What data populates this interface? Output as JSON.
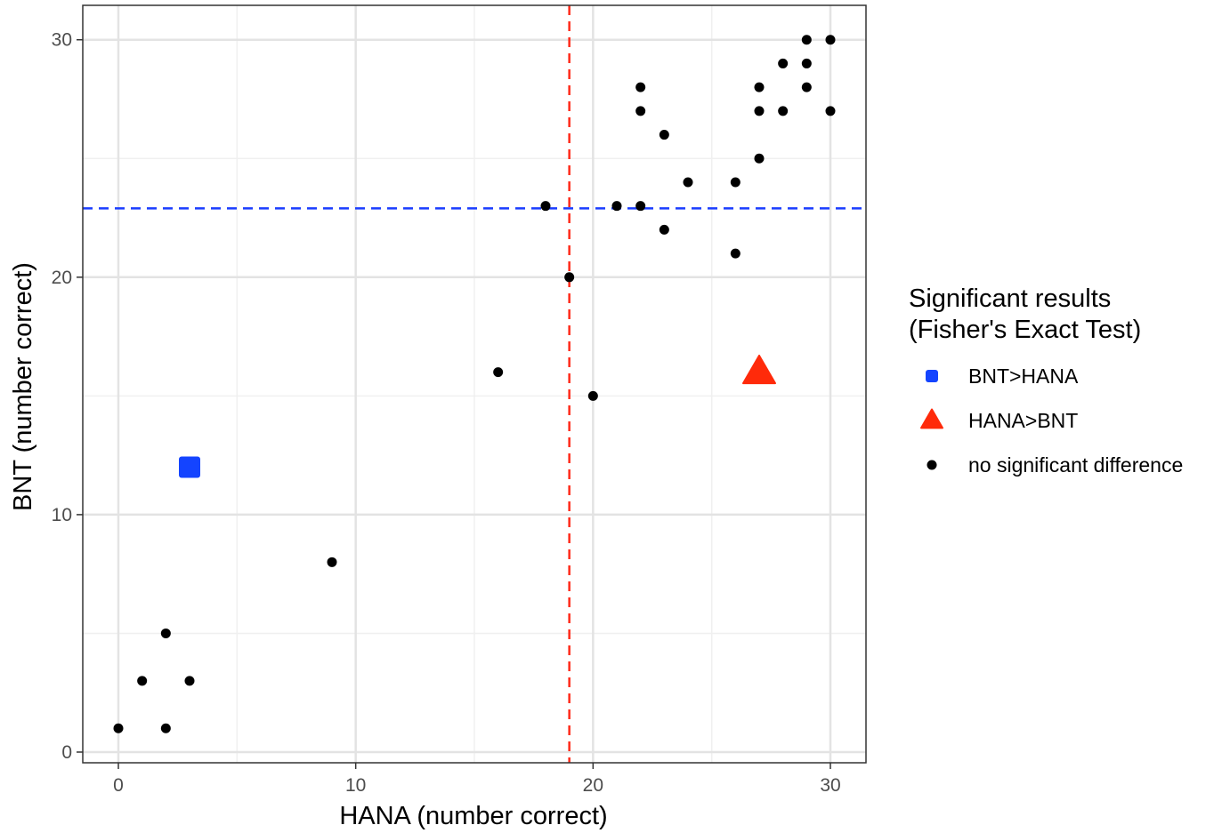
{
  "chart_data": {
    "type": "scatter",
    "title": "",
    "xlabel": "HANA (number correct)",
    "ylabel": "BNT (number correct)",
    "xlim": [
      -1.5,
      31.5
    ],
    "ylim": [
      -0.45,
      31.45
    ],
    "x_ticks": [
      0,
      10,
      20,
      30
    ],
    "y_ticks": [
      0,
      10,
      20,
      30
    ],
    "x_minor_gridlines": [
      5,
      15,
      25
    ],
    "y_minor_gridlines": [
      5,
      15,
      25
    ],
    "grid": true,
    "reference_lines": [
      {
        "orientation": "vertical",
        "value": 19,
        "color": "#ff2a1a",
        "style": "dashed"
      },
      {
        "orientation": "horizontal",
        "value": 22.9,
        "color": "#1a3dff",
        "style": "dashed"
      }
    ],
    "legend": {
      "title_line1": "Significant results",
      "title_line2": "(Fisher's Exact Test)",
      "placement": "right",
      "items": [
        {
          "label": "BNT>HANA",
          "shape": "square",
          "color": "#1444ff"
        },
        {
          "label": "HANA>BNT",
          "shape": "triangle",
          "color": "#ff2a0a"
        },
        {
          "label": "no significant difference",
          "shape": "circle",
          "color": "#000000"
        }
      ]
    },
    "series": [
      {
        "name": "BNT>HANA",
        "shape": "square",
        "color": "#1444ff",
        "points": [
          [
            3,
            12
          ]
        ]
      },
      {
        "name": "HANA>BNT",
        "shape": "triangle",
        "color": "#ff2a0a",
        "points": [
          [
            27,
            16
          ]
        ]
      },
      {
        "name": "no significant difference",
        "shape": "circle",
        "color": "#000000",
        "points": [
          [
            0,
            1
          ],
          [
            1,
            3
          ],
          [
            2,
            5
          ],
          [
            2,
            1
          ],
          [
            3,
            3
          ],
          [
            9,
            8
          ],
          [
            16,
            16
          ],
          [
            18,
            23
          ],
          [
            19,
            20
          ],
          [
            20,
            15
          ],
          [
            21,
            23
          ],
          [
            22,
            28
          ],
          [
            22,
            27
          ],
          [
            22,
            23
          ],
          [
            23,
            26
          ],
          [
            23,
            22
          ],
          [
            24,
            24
          ],
          [
            26,
            24
          ],
          [
            26,
            21
          ],
          [
            27,
            28
          ],
          [
            27,
            27
          ],
          [
            27,
            25
          ],
          [
            28,
            29
          ],
          [
            28,
            27
          ],
          [
            29,
            30
          ],
          [
            29,
            29
          ],
          [
            29,
            28
          ],
          [
            30,
            30
          ],
          [
            30,
            27
          ]
        ]
      }
    ]
  }
}
